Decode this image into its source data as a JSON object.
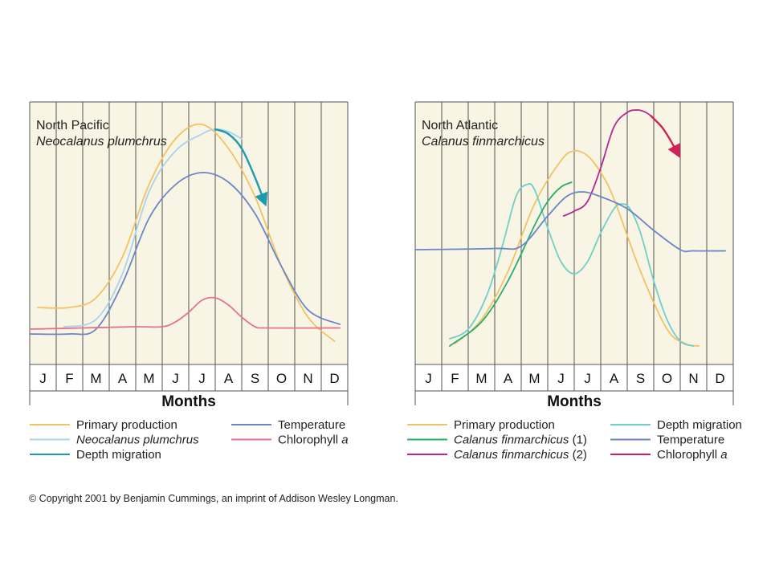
{
  "chart_data": [
    {
      "type": "line",
      "title": "North Pacific",
      "subtitle": "Neocalanus plumchrus",
      "xlabel": "Months",
      "ylabel": "",
      "categories": [
        "J",
        "F",
        "M",
        "A",
        "M",
        "J",
        "J",
        "A",
        "S",
        "O",
        "N",
        "D"
      ],
      "x_range": [
        0,
        12
      ],
      "y_range": [
        0,
        100
      ],
      "grid": "vertical",
      "series": [
        {
          "name": "Primary production",
          "color": "#f2c266",
          "x": [
            0.3,
            1.5,
            2.5,
            3.5,
            4.5,
            5.5,
            6.5,
            7.5,
            8.5,
            9.5,
            10.5,
            11.5
          ],
          "y": [
            19,
            19,
            23,
            40,
            70,
            89,
            95,
            85,
            65,
            36,
            15,
            5
          ]
        },
        {
          "name": "Neocalanus plumchrus",
          "color": "#a9d3ef",
          "x": [
            1.3,
            2.5,
            3.5,
            4.5,
            5.5,
            6.5,
            7.0,
            7.5,
            8.0
          ],
          "y": [
            11,
            14,
            33,
            67,
            84,
            91,
            93,
            92,
            89
          ]
        },
        {
          "name": "Depth migration",
          "color": "#1e9ab0",
          "x": [
            7.0,
            7.5,
            8.0,
            8.5,
            8.85
          ],
          "y": [
            93,
            91,
            85,
            73,
            63
          ],
          "arrow": true
        },
        {
          "name": "Temperature",
          "color": "#6b86c7",
          "x": [
            0.0,
            1.5,
            2.5,
            3.5,
            4.5,
            5.5,
            6.5,
            7.5,
            8.5,
            9.5,
            10.5,
            11.7
          ],
          "y": [
            8,
            8,
            10,
            29,
            56,
            70,
            75,
            71,
            58,
            36,
            18,
            12
          ]
        },
        {
          "name": "Chlorophyll a",
          "color": "#e3738f",
          "x": [
            0.0,
            2.0,
            4.0,
            5.0,
            5.5,
            6.0,
            6.5,
            7.0,
            7.5,
            8.0,
            8.5,
            9.0,
            11.7
          ],
          "y": [
            10,
            10.5,
            11,
            11,
            13,
            17,
            22,
            23,
            20,
            15,
            11,
            10.5,
            10.5
          ]
        }
      ]
    },
    {
      "type": "line",
      "title": "North Atlantic",
      "subtitle": "Calanus finmarchicus",
      "xlabel": "Months",
      "ylabel": "",
      "categories": [
        "J",
        "F",
        "M",
        "A",
        "M",
        "J",
        "J",
        "A",
        "S",
        "O",
        "N",
        "D"
      ],
      "x_range": [
        0,
        12
      ],
      "y_range": [
        0,
        100
      ],
      "grid": "vertical",
      "series": [
        {
          "name": "Primary production",
          "color": "#f2c266",
          "x": [
            1.5,
            2.5,
            3.5,
            4.5,
            5.5,
            6.0,
            6.5,
            7.0,
            7.5,
            8.5,
            9.5,
            10.2,
            10.7
          ],
          "y": [
            4,
            14,
            34,
            62,
            80,
            84,
            82,
            75,
            64,
            34,
            10,
            4,
            3
          ]
        },
        {
          "name": "Depth migration",
          "color": "#6fcfcb",
          "x": [
            1.3,
            2.0,
            2.7,
            3.3,
            3.8,
            4.2,
            4.5,
            5.0,
            5.5,
            6.0,
            6.5,
            7.0,
            7.5,
            7.8,
            8.1,
            8.5,
            9.0,
            9.5,
            10.0,
            10.5
          ],
          "y": [
            6,
            10,
            24,
            45,
            65,
            70,
            68,
            52,
            38,
            33,
            38,
            50,
            60,
            62,
            60,
            50,
            30,
            14,
            5,
            3
          ]
        },
        {
          "name": "Calanus finmarchicus (1)",
          "color": "#2bab6e",
          "x": [
            1.3,
            2.5,
            3.5,
            4.5,
            5.0,
            5.5,
            5.9
          ],
          "y": [
            3,
            13,
            30,
            53,
            63,
            69,
            71
          ]
        },
        {
          "name": "Calanus finmarchicus (2)",
          "color": "#b52597",
          "x": [
            5.6,
            6.0,
            6.5,
            7.0,
            7.5,
            8.0,
            8.4,
            8.7,
            8.9
          ],
          "y": [
            57,
            59,
            63,
            77,
            94,
            100,
            101,
            100,
            98.5
          ]
        },
        {
          "name": "Calanus finmarchicus (2) arrow",
          "color": "#d22059",
          "x": [
            8.9,
            9.3,
            9.6,
            9.9
          ],
          "y": [
            98.5,
            94,
            89,
            83
          ],
          "arrow": true
        },
        {
          "name": "Temperature",
          "color": "#6b86c7",
          "x": [
            0.0,
            3.0,
            4.0,
            5.0,
            5.7,
            6.3,
            7.0,
            8.0,
            9.0,
            10.0,
            10.5,
            11.7
          ],
          "y": [
            43,
            43.5,
            44.5,
            57,
            65,
            67,
            65,
            60,
            51,
            43,
            42.5,
            42.5
          ]
        }
      ]
    }
  ],
  "legend_left": [
    {
      "label": "Primary production",
      "italic": false,
      "suffix": "",
      "color": "#f2c266"
    },
    {
      "label": "Temperature",
      "italic": false,
      "suffix": "",
      "color": "#6b86c7"
    },
    {
      "label": "Neocalanus plumchrus",
      "italic": true,
      "suffix": "",
      "color": "#a9d3ef"
    },
    {
      "label": "Chlorophyll ",
      "italic": false,
      "suffix": "a",
      "color": "#e3738f"
    },
    {
      "label": "Depth migration",
      "italic": false,
      "suffix": "",
      "color": "#1e9ab0"
    }
  ],
  "legend_right": [
    {
      "label": "Primary production",
      "italic": false,
      "suffix": "",
      "color": "#f2c266"
    },
    {
      "label": "Depth migration",
      "italic": false,
      "suffix": "",
      "color": "#6fcfcb"
    },
    {
      "label": "Calanus finmarchicus",
      "italic": true,
      "suffix": " (1)",
      "color": "#2bab6e"
    },
    {
      "label": "Temperature",
      "italic": false,
      "suffix": "",
      "color": "#6b86c7"
    },
    {
      "label": "Calanus finmarchicus",
      "italic": true,
      "suffix": " (2)",
      "color": "#b52597"
    },
    {
      "label": "Chlorophyll ",
      "italic": false,
      "suffix": "a",
      "color": "#d22059"
    }
  ],
  "copyright": "© Copyright 2001 by Benjamin Cummings, an imprint of Addison Wesley Longman."
}
